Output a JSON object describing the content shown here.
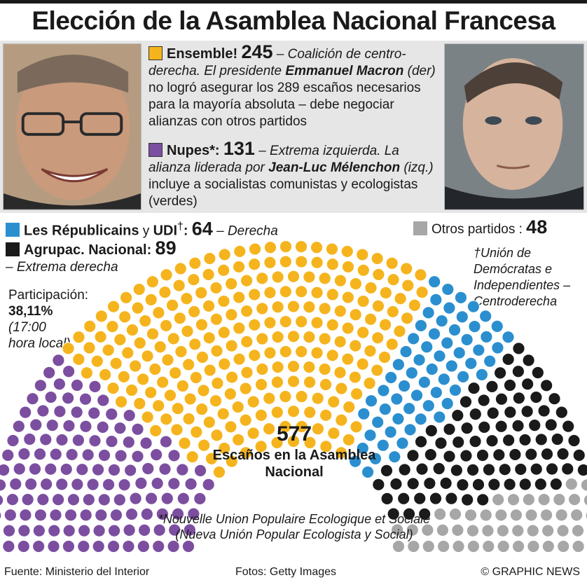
{
  "title": "Elección de la Asamblea Nacional Francesa",
  "parties": {
    "ensemble": {
      "name": "Ensemble!",
      "seats": "245",
      "color": "#f5b41e",
      "desc_a": " – Coalición de centro-derecha. El presidente ",
      "person": "Emmanuel Macron",
      "desc_b": "(der)",
      "desc_c": " no logró asegurar los 289 escaños necesarios para la mayoría absoluta – debe negociar alianzas con otros partidos"
    },
    "nupes": {
      "name": "Nupes*:",
      "seats": "131",
      "color": "#7c4ea0",
      "desc_a": " – Extrema izquierda. La alianza liderada por ",
      "person": "Jean-Luc Mélenchon",
      "desc_b": " (izq.)",
      "desc_c": " incluye a socialistas comunistas y ecologistas (verdes)"
    },
    "republicains": {
      "name": "Les Républicains",
      "conj": " y ",
      "name2": "UDI",
      "mark": "†",
      "colon": ":",
      "seats": "64",
      "desc": " – Derecha",
      "color": "#2b8fcf"
    },
    "rn": {
      "name": "Agrupac. Nacional:",
      "seats": "89",
      "desc": "– Extrema derecha",
      "color": "#1a1a1a"
    },
    "otros": {
      "name": "Otros partidos :",
      "seats": "48",
      "color": "#a7a7a7"
    }
  },
  "udi_note": "†Unión de Demócratas e Independientes – Centroderecha",
  "participation": {
    "label": "Participación:",
    "value": "38,11%",
    "note": "(17:00 hora local)"
  },
  "center": {
    "total": "577",
    "label": "Escaños en la Asamblea Nacional"
  },
  "nupes_note": "*Nouvelle Union Populaire Ecologique et Sociale (Nueva Unión Popular Ecologista y Social)",
  "footer": {
    "source": "Fuente: Ministerio del Interior",
    "photos": "Fotos: Getty Images",
    "credit": "© GRAPHIC NEWS"
  },
  "chart_data": {
    "type": "hemicycle",
    "title": "Elección de la Asamblea Nacional Francesa",
    "total": 577,
    "series": [
      {
        "name": "Nupes",
        "value": 131,
        "color": "#7c4ea0"
      },
      {
        "name": "Ensemble!",
        "value": 245,
        "color": "#f5b41e"
      },
      {
        "name": "Les Républicains y UDI",
        "value": 64,
        "color": "#2b8fcf"
      },
      {
        "name": "Agrupac. Nacional",
        "value": 89,
        "color": "#1a1a1a"
      },
      {
        "name": "Otros partidos",
        "value": 48,
        "color": "#a7a7a7"
      }
    ]
  }
}
